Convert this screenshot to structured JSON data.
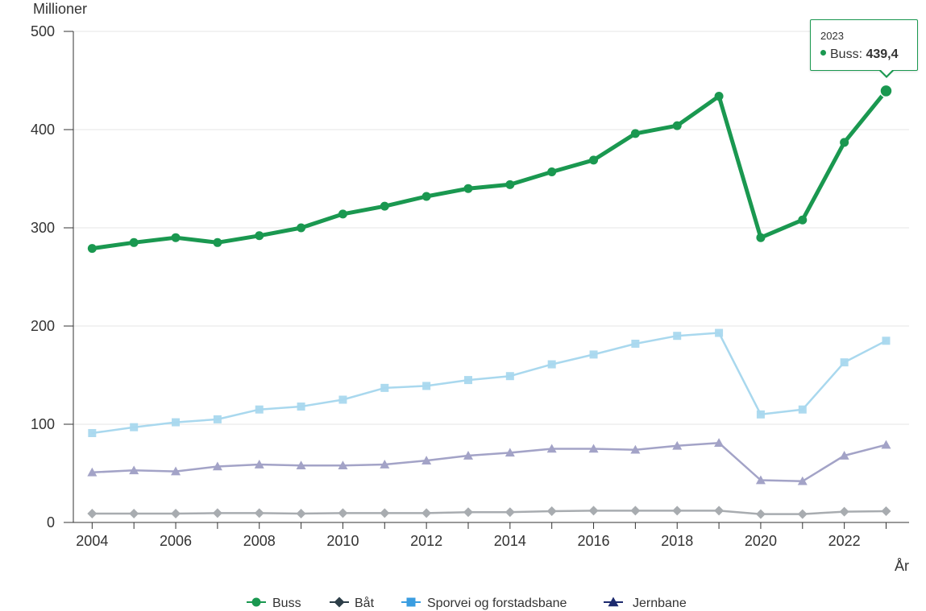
{
  "chart_data": {
    "type": "line",
    "title": "",
    "xlabel": "År",
    "ylabel": "Millioner",
    "x": [
      2004,
      2005,
      2006,
      2007,
      2008,
      2009,
      2010,
      2011,
      2012,
      2013,
      2014,
      2015,
      2016,
      2017,
      2018,
      2019,
      2020,
      2021,
      2022,
      2023
    ],
    "xticks": [
      "2004",
      "2006",
      "2008",
      "2010",
      "2012",
      "2014",
      "2016",
      "2018",
      "2020",
      "2022"
    ],
    "ylim": [
      0,
      500
    ],
    "yticks": [
      "0",
      "100",
      "200",
      "300",
      "400",
      "500"
    ],
    "grid": true,
    "legend_position": "bottom",
    "series": [
      {
        "name": "Buss",
        "color": "#1a9850",
        "line_color": "#1a9850",
        "marker": "circle",
        "values": [
          279,
          285,
          290,
          285,
          292,
          300,
          314,
          322,
          332,
          340,
          344,
          357,
          369,
          396,
          404,
          434,
          290,
          308,
          387,
          439.4
        ]
      },
      {
        "name": "Båt",
        "color": "#2d3e48",
        "line_color": "#a8acb0",
        "marker": "diamond",
        "values": [
          9,
          9,
          9,
          9.5,
          9.5,
          9,
          9.5,
          9.5,
          9.5,
          10.5,
          10.5,
          11.5,
          12,
          12,
          12,
          12,
          8.5,
          8.5,
          11,
          11.5
        ]
      },
      {
        "name": "Sporvei og forstadsbane",
        "color": "#3a9de0",
        "line_color": "#a9d8ee",
        "marker": "square",
        "values": [
          91,
          97,
          102,
          105,
          115,
          118,
          125,
          137,
          139,
          145,
          149,
          161,
          171,
          182,
          190,
          193,
          110,
          115,
          163,
          185
        ]
      },
      {
        "name": "Jernbane",
        "color": "#1c2a6e",
        "line_color": "#a3a3c7",
        "marker": "triangle",
        "values": [
          51,
          53,
          52,
          57,
          59,
          58,
          58,
          59,
          63,
          68,
          71,
          75,
          75,
          74,
          78,
          81,
          43,
          42,
          68,
          79
        ]
      }
    ],
    "tooltip": {
      "year": "2023",
      "series": "Buss",
      "label": "Buss: ",
      "value": "439,4"
    }
  }
}
